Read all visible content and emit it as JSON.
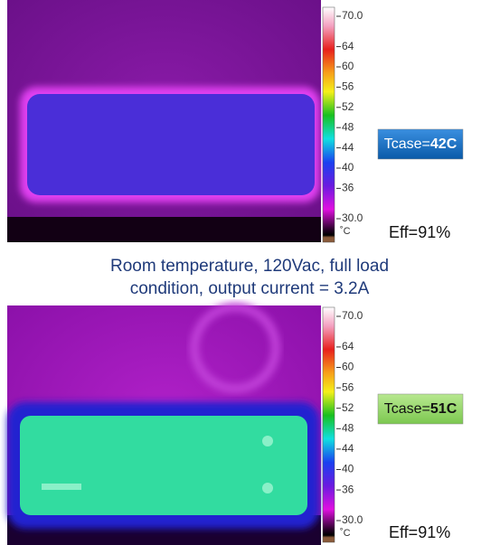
{
  "panels": [
    {
      "scale": {
        "lim": [
          30,
          70
        ],
        "ticks": [
          {
            "value": 70,
            "label": "70.0"
          },
          64,
          60,
          56,
          52,
          48,
          44,
          40,
          36,
          {
            "value": 30,
            "label": "30.0"
          }
        ],
        "unit": "˚C"
      },
      "tcase": {
        "prefix": "Tcase=",
        "value": "42C"
      },
      "eff": "Eff=91%"
    },
    {
      "scale": {
        "lim": [
          30,
          70
        ],
        "ticks": [
          {
            "value": 70,
            "label": "70.0"
          },
          64,
          60,
          56,
          52,
          48,
          44,
          40,
          36,
          {
            "value": 30,
            "label": "30.0"
          }
        ],
        "unit": "˚C"
      },
      "tcase": {
        "prefix": "Tcase=",
        "value": "51C"
      },
      "eff": "Eff=91%"
    }
  ],
  "caption": [
    "Room temperature, 120Vac, full load",
    "condition, output current = 3.2A"
  ]
}
